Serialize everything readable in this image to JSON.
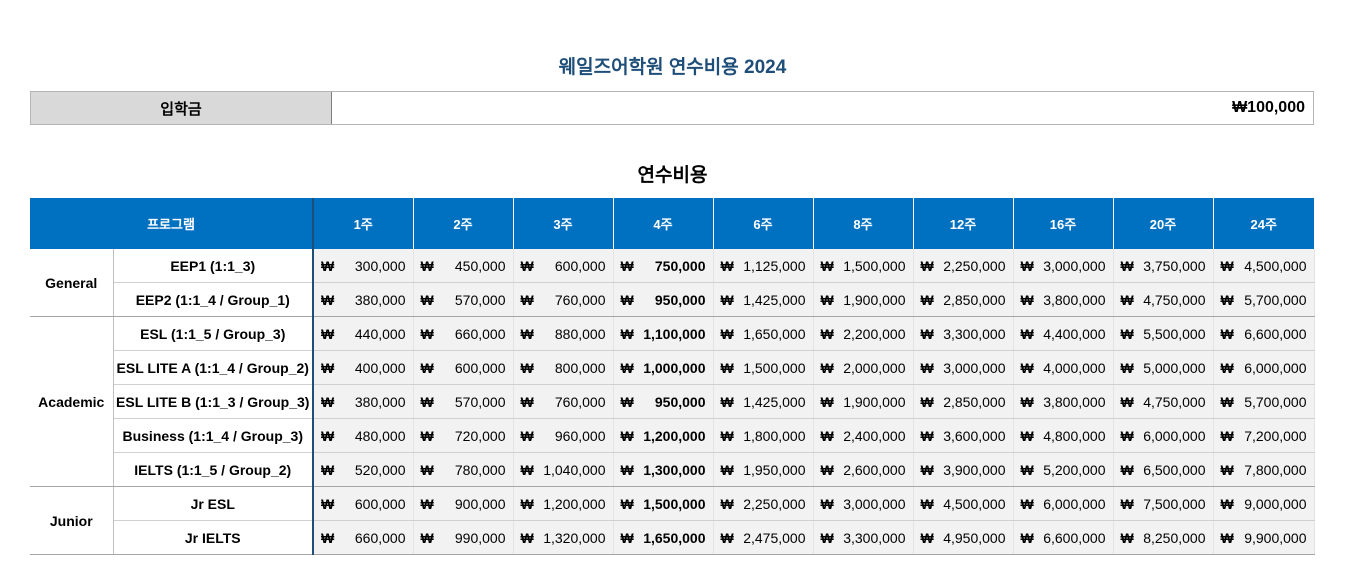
{
  "title": "웨일즈어학원 연수비용 2024",
  "entry_fee": {
    "label": "입학금",
    "value": "₩100,000"
  },
  "subtitle": "연수비용",
  "table": {
    "currency_symbol": "₩",
    "program_header": "프로그램",
    "weeks": [
      "1주",
      "2주",
      "3주",
      "4주",
      "6주",
      "8주",
      "12주",
      "16주",
      "20주",
      "24주"
    ],
    "groups": [
      {
        "name": "General",
        "rows": [
          {
            "program": "EEP1 (1:1_3)",
            "prices": [
              "300,000",
              "450,000",
              "600,000",
              "750,000",
              "1,125,000",
              "1,500,000",
              "2,250,000",
              "3,000,000",
              "3,750,000",
              "4,500,000"
            ]
          },
          {
            "program": "EEP2 (1:1_4 / Group_1)",
            "prices": [
              "380,000",
              "570,000",
              "760,000",
              "950,000",
              "1,425,000",
              "1,900,000",
              "2,850,000",
              "3,800,000",
              "4,750,000",
              "5,700,000"
            ]
          }
        ]
      },
      {
        "name": "Academic",
        "rows": [
          {
            "program": "ESL (1:1_5 / Group_3)",
            "prices": [
              "440,000",
              "660,000",
              "880,000",
              "1,100,000",
              "1,650,000",
              "2,200,000",
              "3,300,000",
              "4,400,000",
              "5,500,000",
              "6,600,000"
            ]
          },
          {
            "program": "ESL LITE A (1:1_4 / Group_2)",
            "prices": [
              "400,000",
              "600,000",
              "800,000",
              "1,000,000",
              "1,500,000",
              "2,000,000",
              "3,000,000",
              "4,000,000",
              "5,000,000",
              "6,000,000"
            ]
          },
          {
            "program": "ESL LITE B (1:1_3 / Group_3)",
            "prices": [
              "380,000",
              "570,000",
              "760,000",
              "950,000",
              "1,425,000",
              "1,900,000",
              "2,850,000",
              "3,800,000",
              "4,750,000",
              "5,700,000"
            ]
          },
          {
            "program": "Business (1:1_4 / Group_3)",
            "prices": [
              "480,000",
              "720,000",
              "960,000",
              "1,200,000",
              "1,800,000",
              "2,400,000",
              "3,600,000",
              "4,800,000",
              "6,000,000",
              "7,200,000"
            ]
          },
          {
            "program": "IELTS (1:1_5 / Group_2)",
            "prices": [
              "520,000",
              "780,000",
              "1,040,000",
              "1,300,000",
              "1,950,000",
              "2,600,000",
              "3,900,000",
              "5,200,000",
              "6,500,000",
              "7,800,000"
            ]
          }
        ]
      },
      {
        "name": "Junior",
        "rows": [
          {
            "program": "Jr ESL",
            "prices": [
              "600,000",
              "900,000",
              "1,200,000",
              "1,500,000",
              "2,250,000",
              "3,000,000",
              "4,500,000",
              "6,000,000",
              "7,500,000",
              "9,000,000"
            ]
          },
          {
            "program": "Jr IELTS",
            "prices": [
              "660,000",
              "990,000",
              "1,320,000",
              "1,650,000",
              "2,475,000",
              "3,300,000",
              "4,950,000",
              "6,600,000",
              "8,250,000",
              "9,900,000"
            ]
          }
        ]
      }
    ],
    "highlight_week_index": 3
  },
  "colors": {
    "header_bg": "#0070c0",
    "title": "#1f4e79",
    "label_bg": "#d9d9d9"
  }
}
